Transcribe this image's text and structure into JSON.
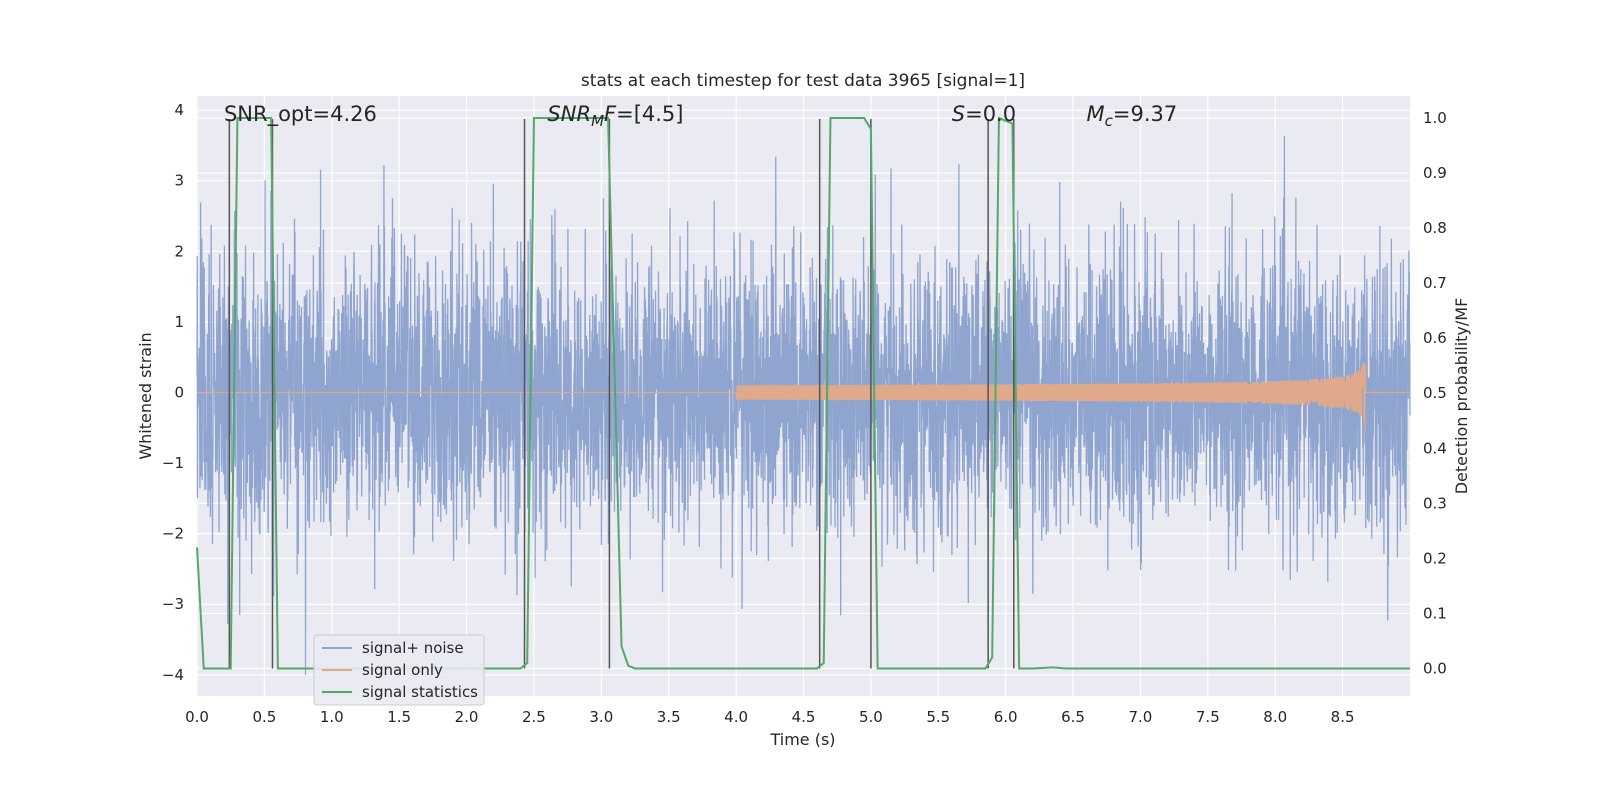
{
  "chart_data": {
    "type": "line",
    "title": "stats at each timestep for test data 3965 [signal=1]",
    "xlabel": "Time (s)",
    "ylabel_left": "Whitened strain",
    "ylabel_right": "Detection probability/MF",
    "xlim": [
      0,
      9.0
    ],
    "ylim_left": [
      -4.3,
      4.2
    ],
    "ylim_right": [
      -0.05,
      1.04
    ],
    "x_ticks": [
      "0.0",
      "0.5",
      "1.0",
      "1.5",
      "2.0",
      "2.5",
      "3.0",
      "3.5",
      "4.0",
      "4.5",
      "5.0",
      "5.5",
      "6.0",
      "6.5",
      "7.0",
      "7.5",
      "8.0",
      "8.5"
    ],
    "y_ticks_left": [
      "−4",
      "−3",
      "−2",
      "−1",
      "0",
      "1",
      "2",
      "3",
      "4"
    ],
    "y_ticks_right": [
      "0.0",
      "0.1",
      "0.2",
      "0.3",
      "0.4",
      "0.5",
      "0.6",
      "0.7",
      "0.8",
      "0.9",
      "1.0"
    ],
    "grid": true,
    "legend_position": "lower-left",
    "annotations": [
      {
        "prefix": "SNR_opt=4.26",
        "sub": "",
        "suffix": "",
        "italic": false,
        "x": 0.2
      },
      {
        "prefix": "SNR",
        "sub": "M",
        "suffix": "F=[4.5]",
        "italic": true,
        "x": 2.6
      },
      {
        "prefix": "S",
        "sub": "",
        "suffix": "=0.0",
        "italic": true,
        "x": 5.6
      },
      {
        "prefix": "M",
        "sub": "c",
        "suffix": "=9.37",
        "italic": true,
        "x": 6.6
      }
    ],
    "series": [
      {
        "name": "signal+ noise",
        "color": "#8fa5cf",
        "axis": "left",
        "noise_std": 0.95,
        "noise_max": 4.0,
        "t_end": 9.0
      },
      {
        "name": "signal only",
        "color": "#e0a98b",
        "axis": "left",
        "chirp_start": 4.0,
        "merger": 8.67,
        "peak_amplitude": 0.6
      },
      {
        "name": "signal statistics",
        "color": "#55a868",
        "axis": "right",
        "x": [
          0.0,
          0.05,
          0.25,
          0.3,
          0.55,
          0.6,
          0.7,
          2.4,
          2.45,
          2.5,
          3.05,
          3.15,
          3.2,
          3.25,
          4.6,
          4.65,
          4.7,
          4.95,
          5.0,
          5.05,
          5.85,
          5.9,
          5.95,
          6.05,
          6.1,
          6.2,
          6.35,
          6.45,
          9.0
        ],
        "y": [
          0.22,
          0.0,
          0.0,
          1.0,
          1.0,
          0.0,
          0.0,
          0.0,
          0.01,
          1.0,
          1.0,
          0.04,
          0.005,
          0.0,
          0.0,
          0.01,
          1.0,
          1.0,
          0.98,
          0.0,
          0.0,
          0.02,
          1.0,
          0.99,
          0.0,
          0.0,
          0.002,
          0.0,
          0.0
        ]
      }
    ],
    "detection_lines": [
      0.24,
      0.56,
      2.43,
      3.06,
      4.62,
      5.0,
      5.87,
      6.06
    ]
  }
}
